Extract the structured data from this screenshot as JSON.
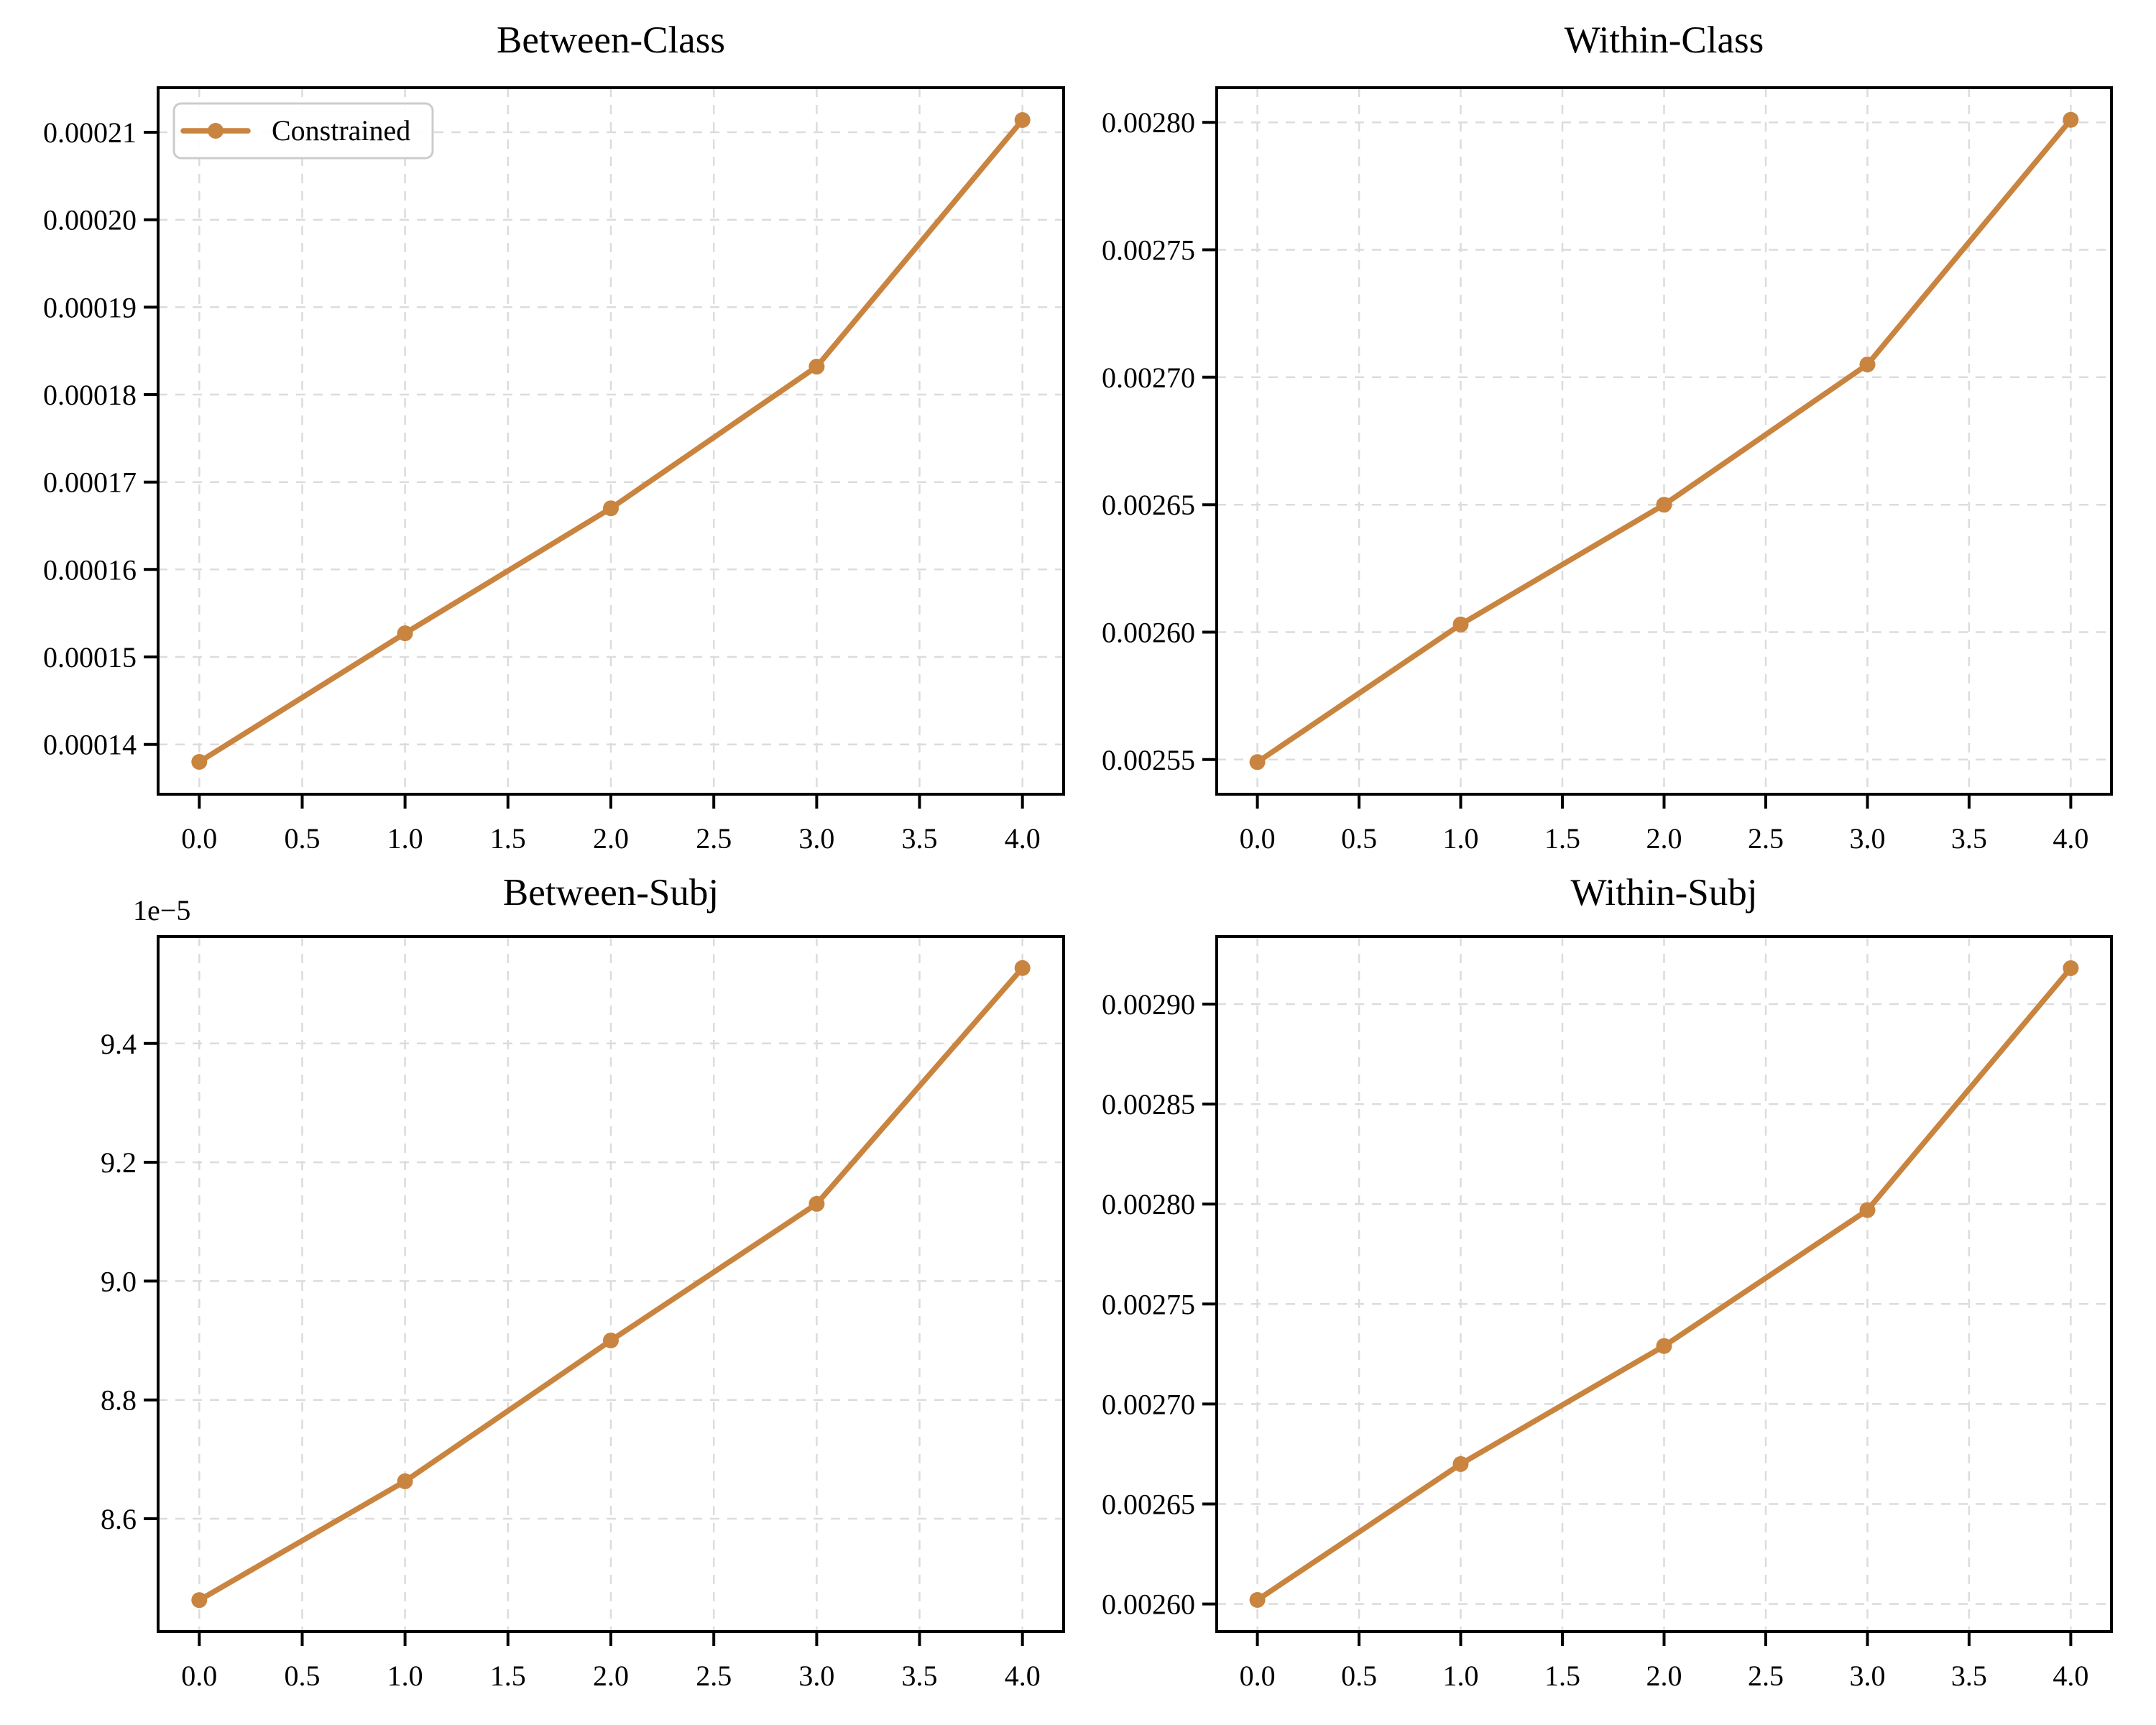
{
  "chart_data": [
    {
      "id": "between-class",
      "type": "line",
      "title": "Between-Class",
      "x": [
        0,
        1,
        2,
        3,
        4
      ],
      "series": [
        {
          "name": "Constrained",
          "values": [
            0.000138,
            0.0001527,
            0.000167,
            0.0001832,
            0.0002114
          ]
        }
      ],
      "xlim": [
        -0.2,
        4.2
      ],
      "ylim": [
        0.0001343,
        0.0002151
      ],
      "xtick_values": [
        0,
        0.5,
        1,
        1.5,
        2,
        2.5,
        3,
        3.5,
        4
      ],
      "xtick_labels": [
        "0.0",
        "0.5",
        "1.0",
        "1.5",
        "2.0",
        "2.5",
        "3.0",
        "3.5",
        "4.0"
      ],
      "ytick_values": [
        0.00014,
        0.00015,
        0.00016,
        0.00017,
        0.00018,
        0.00019,
        0.0002,
        0.00021
      ],
      "ytick_labels": [
        "0.00014",
        "0.00015",
        "0.00016",
        "0.00017",
        "0.00018",
        "0.00019",
        "0.00020",
        "0.00021"
      ],
      "grid": true,
      "legend": {
        "label": "Constrained",
        "position": "upper left"
      },
      "line_color": "#C9843F",
      "marker": "circle"
    },
    {
      "id": "within-class",
      "type": "line",
      "title": "Within-Class",
      "x": [
        0,
        1,
        2,
        3,
        4
      ],
      "series": [
        {
          "name": "Constrained",
          "values": [
            0.002549,
            0.002603,
            0.00265,
            0.002705,
            0.002801
          ]
        }
      ],
      "xlim": [
        -0.2,
        4.2
      ],
      "ylim": [
        0.0025364,
        0.0028136
      ],
      "xtick_values": [
        0,
        0.5,
        1,
        1.5,
        2,
        2.5,
        3,
        3.5,
        4
      ],
      "xtick_labels": [
        "0.0",
        "0.5",
        "1.0",
        "1.5",
        "2.0",
        "2.5",
        "3.0",
        "3.5",
        "4.0"
      ],
      "ytick_values": [
        0.00255,
        0.0026,
        0.00265,
        0.0027,
        0.00275,
        0.0028
      ],
      "ytick_labels": [
        "0.00255",
        "0.00260",
        "0.00265",
        "0.00270",
        "0.00275",
        "0.00280"
      ],
      "grid": true,
      "line_color": "#C9843F",
      "marker": "circle"
    },
    {
      "id": "between-subj",
      "type": "line",
      "title": "Between-Subj",
      "x": [
        0,
        1,
        2,
        3,
        4
      ],
      "series": [
        {
          "name": "Constrained",
          "values": [
            8.463e-05,
            8.663e-05,
            8.9e-05,
            9.13e-05,
            9.527e-05
          ]
        }
      ],
      "xlim": [
        -0.2,
        4.2
      ],
      "ylim": [
        8.41e-05,
        9.58e-05
      ],
      "xtick_values": [
        0,
        0.5,
        1,
        1.5,
        2,
        2.5,
        3,
        3.5,
        4
      ],
      "xtick_labels": [
        "0.0",
        "0.5",
        "1.0",
        "1.5",
        "2.0",
        "2.5",
        "3.0",
        "3.5",
        "4.0"
      ],
      "ytick_values": [
        8.6e-05,
        8.8e-05,
        9e-05,
        9.2e-05,
        9.4e-05
      ],
      "ytick_labels": [
        "8.6",
        "8.8",
        "9.0",
        "9.2",
        "9.4"
      ],
      "offset_text": "1e−5",
      "grid": true,
      "line_color": "#C9843F",
      "marker": "circle"
    },
    {
      "id": "within-subj",
      "type": "line",
      "title": "Within-Subj",
      "x": [
        0,
        1,
        2,
        3,
        4
      ],
      "series": [
        {
          "name": "Constrained",
          "values": [
            0.002602,
            0.00267,
            0.002729,
            0.002797,
            0.002918
          ]
        }
      ],
      "xlim": [
        -0.2,
        4.2
      ],
      "ylim": [
        0.0025862,
        0.0029338
      ],
      "xtick_values": [
        0,
        0.5,
        1,
        1.5,
        2,
        2.5,
        3,
        3.5,
        4
      ],
      "xtick_labels": [
        "0.0",
        "0.5",
        "1.0",
        "1.5",
        "2.0",
        "2.5",
        "3.0",
        "3.5",
        "4.0"
      ],
      "ytick_values": [
        0.0026,
        0.00265,
        0.0027,
        0.00275,
        0.0028,
        0.00285,
        0.0029
      ],
      "ytick_labels": [
        "0.00260",
        "0.00265",
        "0.00270",
        "0.00275",
        "0.00280",
        "0.00285",
        "0.00290"
      ],
      "grid": true,
      "line_color": "#C9843F",
      "marker": "circle"
    }
  ]
}
